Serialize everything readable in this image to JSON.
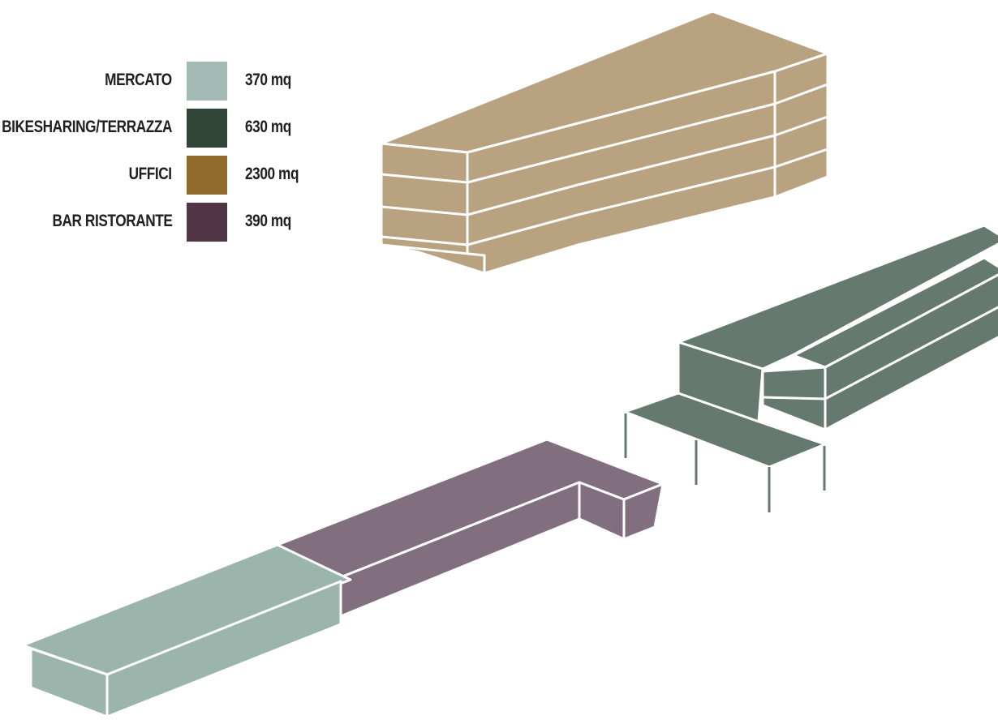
{
  "legend": {
    "items": [
      {
        "id": "mercato",
        "label": "MERCATO",
        "area": "370 mq",
        "color": "#a3bab4"
      },
      {
        "id": "bikesharing",
        "label": "BIKESHARING/TERRAZZA",
        "area": "630 mq",
        "color": "#2e4538"
      },
      {
        "id": "uffici",
        "label": "UFFICI",
        "area": "2300 mq",
        "color": "#8f6a2a"
      },
      {
        "id": "bar",
        "label": "BAR RISTORANTE",
        "area": "390 mq",
        "color": "#523547"
      }
    ]
  },
  "volume_colors": {
    "uffici": "#b8a27f",
    "bikesharing": "#66796f",
    "bar": "#816e7e",
    "mercato": "#9bb5ad",
    "edge": "#ffffff"
  }
}
